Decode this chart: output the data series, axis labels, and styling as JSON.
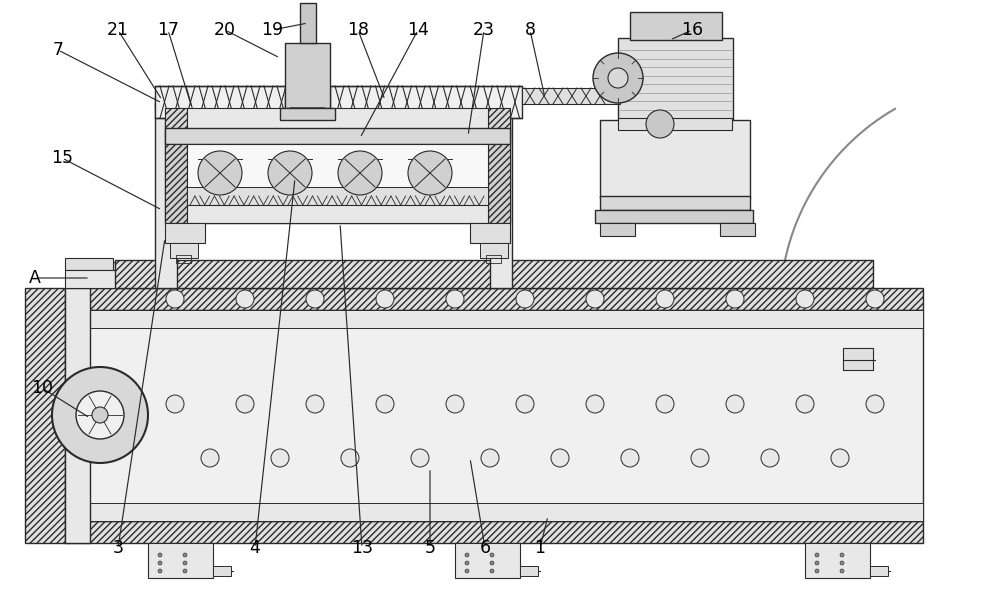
{
  "line_color": "#2a2a2a",
  "light_gray": "#e8e8e8",
  "mid_gray": "#cccccc",
  "dark_gray": "#aaaaaa",
  "white": "#ffffff",
  "bg": "#f8f8f8",
  "hatch_color": "#444444"
}
